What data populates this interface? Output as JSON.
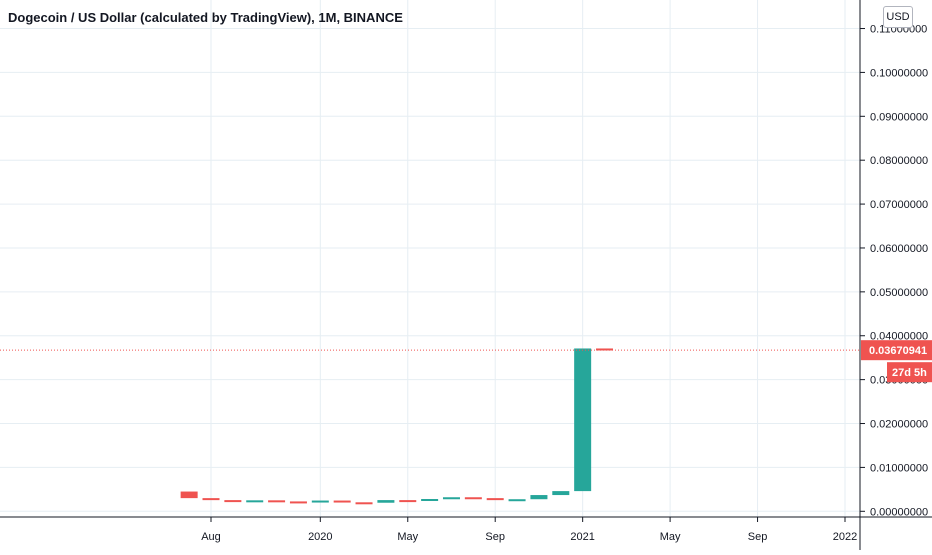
{
  "header": {
    "title": "Dogecoin / US Dollar (calculated by TradingView), 1M, BINANCE",
    "currency": "USD"
  },
  "price_scale": {
    "ticks": [
      "0.00000000",
      "0.01000000",
      "0.02000000",
      "0.03000000",
      "0.04000000",
      "0.05000000",
      "0.06000000",
      "0.07000000",
      "0.08000000",
      "0.09000000",
      "0.10000000",
      "0.11000000"
    ]
  },
  "time_scale": {
    "labels": [
      "Aug",
      "2020",
      "May",
      "Sep",
      "2021",
      "May",
      "Sep",
      "2022"
    ]
  },
  "last_price": {
    "value": "0.03670941",
    "countdown": "27d 5h",
    "color": "#ef5350"
  },
  "colors": {
    "up": "#26a69a",
    "down": "#ef5350",
    "grid": "#e6eef3",
    "axis": "#131722"
  },
  "chart_data": {
    "type": "candlestick",
    "ylim": [
      -0.0013,
      0.1165
    ],
    "grid": true,
    "x": [
      "2019-07",
      "2019-08",
      "2019-09",
      "2019-10",
      "2019-11",
      "2019-12",
      "2020-01",
      "2020-02",
      "2020-03",
      "2020-04",
      "2020-05",
      "2020-06",
      "2020-07",
      "2020-08",
      "2020-09",
      "2020-10",
      "2020-11",
      "2020-12",
      "2021-01",
      "2021-02"
    ],
    "x_ticks": [
      "2019-08",
      "2020-01",
      "2020-05",
      "2020-09",
      "2021-01",
      "2021-05",
      "2021-09",
      "2022-01"
    ],
    "open": [
      0.0045,
      0.003,
      0.00255,
      0.0025,
      0.0025,
      0.00225,
      0.00215,
      0.00245,
      0.00205,
      0.00195,
      0.00255,
      0.0024,
      0.0028,
      0.0032,
      0.003,
      0.0026,
      0.00275,
      0.0037,
      0.0046,
      0.0371
    ],
    "close": [
      0.003,
      0.00255,
      0.0025,
      0.0025,
      0.00225,
      0.00215,
      0.00245,
      0.00205,
      0.00195,
      0.00255,
      0.0024,
      0.0028,
      0.0032,
      0.003,
      0.0026,
      0.00275,
      0.0037,
      0.0046,
      0.0371,
      0.03670941
    ]
  }
}
